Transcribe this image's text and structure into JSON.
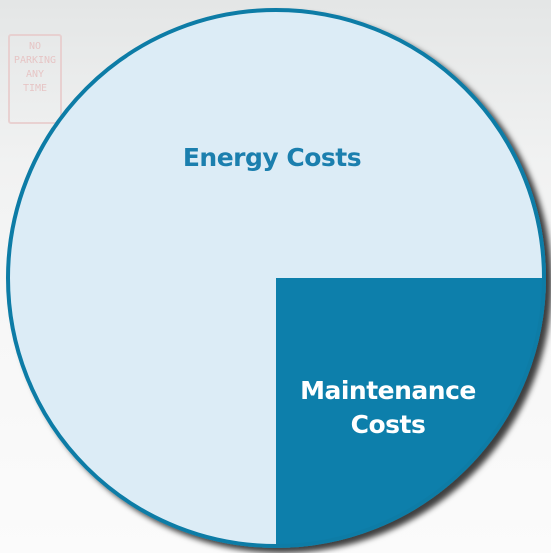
{
  "chart_data": {
    "type": "pie",
    "categories": [
      "Energy Costs",
      "Maintenance Costs"
    ],
    "values": [
      75,
      25
    ],
    "colors": [
      "#dcecf6",
      "#0a7fab"
    ],
    "label_colors": [
      "#1b7fae",
      "#ffffff"
    ]
  },
  "background_sign": [
    "NO",
    "PARKING",
    "ANY",
    "TIME"
  ]
}
